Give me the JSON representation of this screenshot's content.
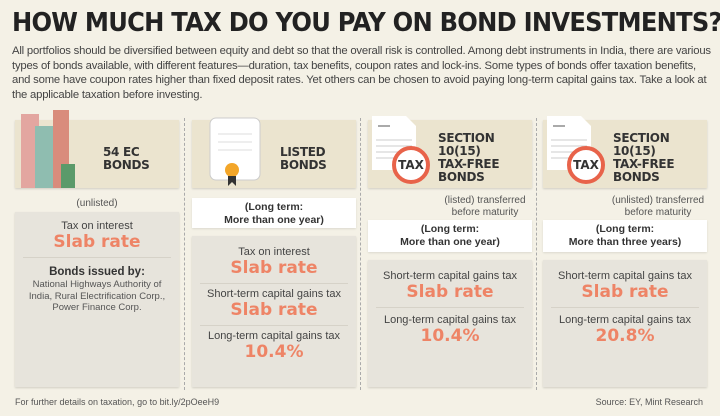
{
  "title": "HOW MUCH TAX DO YOU PAY ON BOND INVESTMENTS?",
  "intro": "All portfolios should be diversified between equity and debt so that the overall risk is controlled. Among debt instruments in India, there are various types of bonds available, with different features—duration, tax benefits, coupon rates and lock-ins. Some types of bonds offer taxation benefits, and some have coupon rates higher than fixed deposit rates. Yet others can be chosen to avoid paying long-term capital gains tax. Take a look at the applicable taxation before investing.",
  "accent": "#ee8466",
  "columns": [
    {
      "icon": "buildings-icon",
      "title_1": "54 EC",
      "title_2": "BONDS",
      "sub": "(unlisted)",
      "rows": [
        {
          "label": "Tax on interest",
          "value": "Slab rate"
        }
      ],
      "issued_title": "Bonds issued by:",
      "issued_text": "National Highways Authority of India, Rural Electrification Corp., Power Finance Corp."
    },
    {
      "icon": "certificate-icon",
      "title_1": "LISTED",
      "title_2": "BONDS",
      "term_1": "(Long term:",
      "term_2": "More than one year)",
      "rows": [
        {
          "label": "Tax on interest",
          "value": "Slab rate"
        },
        {
          "label": "Short-term capital gains tax",
          "value": "Slab rate"
        },
        {
          "label": "Long-term capital gains tax",
          "value": "10.4%"
        }
      ]
    },
    {
      "icon": "no-tax-icon",
      "icon_text": "TAX",
      "title_1": "SECTION 10(15)",
      "title_2": "TAX-FREE",
      "title_3": "BONDS",
      "sub_1": "(listed) transferred",
      "sub_2": "before maturity",
      "term_1": "(Long term:",
      "term_2": "More than one year)",
      "rows": [
        {
          "label": "Short-term capital gains tax",
          "value": "Slab rate"
        },
        {
          "label": "Long-term capital gains tax",
          "value": "10.4%"
        }
      ]
    },
    {
      "icon": "no-tax-icon",
      "icon_text": "TAX",
      "title_1": "SECTION 10(15)",
      "title_2": "TAX-FREE",
      "title_3": "BONDS",
      "sub_1": "(unlisted) transferred",
      "sub_2": "before maturity",
      "term_1": "(Long term:",
      "term_2": "More than three years)",
      "rows": [
        {
          "label": "Short-term capital gains tax",
          "value": "Slab rate"
        },
        {
          "label": "Long-term capital gains tax",
          "value": "20.8%"
        }
      ]
    }
  ],
  "footer_left": "For further details on taxation, go to bit.ly/2pOeeH9",
  "footer_right": "Source: EY, Mint Research"
}
